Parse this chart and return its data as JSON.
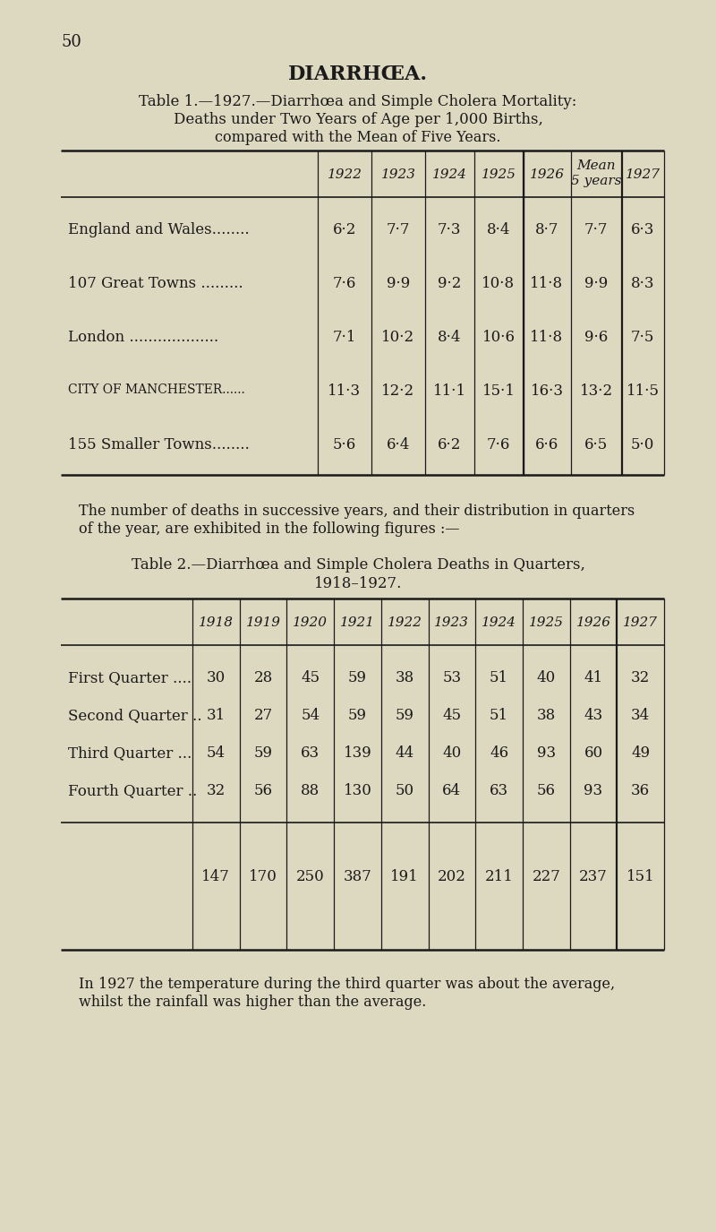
{
  "page_number": "50",
  "bg_color": "#ddd8c0",
  "text_color": "#1a1a1a",
  "main_title": "DIARRHŒA.",
  "table1_title_line1": "Table 1.—1927.—Diarrhœa and Simple Cholera Mortality:",
  "table1_title_line2": "Deaths under Two Years of Age per 1,000 Births,",
  "table1_title_line3": "compared with the Mean of Five Years.",
  "table1_col_headers": [
    "1922",
    "1923",
    "1924",
    "1925",
    "1926",
    "Mean\n5 years",
    "1927"
  ],
  "table1_rows": [
    {
      "label": "England and Wales........",
      "values": [
        "6·2",
        "7·7",
        "7·3",
        "8·4",
        "8·7",
        "7·7",
        "6·3"
      ]
    },
    {
      "label": "107 Great Towns .........",
      "values": [
        "7·6",
        "9·9",
        "9·2",
        "10·8",
        "11·8",
        "9·9",
        "8·3"
      ]
    },
    {
      "label": "London ...................",
      "values": [
        "7·1",
        "10·2",
        "8·4",
        "10·6",
        "11·8",
        "9·6",
        "7·5"
      ]
    },
    {
      "label": "City of Manchester......",
      "values": [
        "11·3",
        "12·2",
        "11·1",
        "15·1",
        "16·3",
        "13·2",
        "11·5"
      ]
    },
    {
      "label": "155 Smaller Towns........",
      "values": [
        "5·6",
        "6·4",
        "6·2",
        "7·6",
        "6·6",
        "6·5",
        "5·0"
      ]
    }
  ],
  "table1_label_style": [
    "normal",
    "normal",
    "normal",
    "smallcaps",
    "normal"
  ],
  "table2_title_line1": "Table 2.—Diarrhœa and Simple Cholera Deaths in Quarters,",
  "table2_title_line2": "1918–1927.",
  "table2_col_headers": [
    "1918",
    "1919",
    "1920",
    "1921",
    "1922",
    "1923",
    "1924",
    "1925",
    "1926",
    "1927"
  ],
  "table2_rows": [
    {
      "label": "First Quarter ....",
      "values": [
        "30",
        "28",
        "45",
        "59",
        "38",
        "53",
        "51",
        "40",
        "41",
        "32"
      ]
    },
    {
      "label": "Second Quarter ..",
      "values": [
        "31",
        "27",
        "54",
        "59",
        "59",
        "45",
        "51",
        "38",
        "43",
        "34"
      ]
    },
    {
      "label": "Third Quarter ...",
      "values": [
        "54",
        "59",
        "63",
        "139",
        "44",
        "40",
        "46",
        "93",
        "60",
        "49"
      ]
    },
    {
      "label": "Fourth Quarter ..",
      "values": [
        "32",
        "56",
        "88",
        "130",
        "50",
        "64",
        "63",
        "56",
        "93",
        "36"
      ]
    }
  ],
  "table2_totals": [
    "147",
    "170",
    "250",
    "387",
    "191",
    "202",
    "211",
    "227",
    "237",
    "151"
  ],
  "paragraph_text1": "The number of deaths in successive years, and their distribution in quarters",
  "paragraph_text2": "of the year, are exhibited in the following figures :—",
  "footer_text1": "In 1927 the temperature during the third quarter was about the average,",
  "footer_text2": "whilst the rainfall was higher than the average.",
  "figwidth": 8.0,
  "figheight": 13.75,
  "dpi": 100
}
